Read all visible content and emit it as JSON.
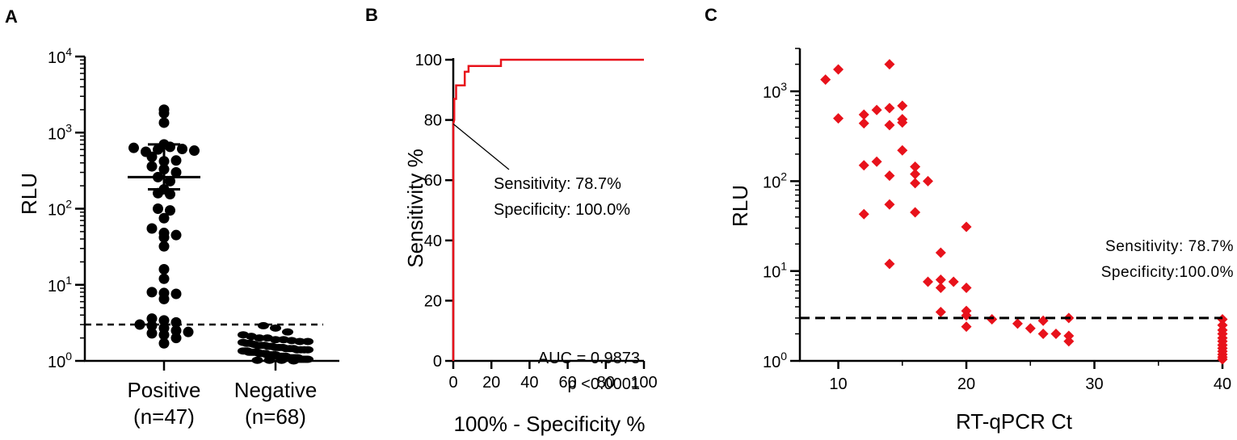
{
  "chart_data": [
    {
      "type": "scatter",
      "panel": "A",
      "ylabel": "RLU",
      "yscale": "log",
      "ylim": [
        1,
        10000
      ],
      "y_ticks": [
        {
          "value": 1,
          "base": "10",
          "exp": "0"
        },
        {
          "value": 10,
          "base": "10",
          "exp": "1"
        },
        {
          "value": 100,
          "base": "10",
          "exp": "2"
        },
        {
          "value": 1000,
          "base": "10",
          "exp": "3"
        },
        {
          "value": 10000,
          "base": "10",
          "exp": "4"
        }
      ],
      "cutoff": 3.0,
      "colors": {
        "points": "#000000",
        "line": "#000000"
      },
      "groups": [
        {
          "name": "Positive",
          "count_label": "(n=47)",
          "mean": 260,
          "sem_range": [
            180,
            700
          ],
          "values": [
            2000,
            1800,
            1350,
            700,
            630,
            560,
            600,
            650,
            610,
            580,
            480,
            420,
            430,
            360,
            330,
            300,
            260,
            230,
            180,
            160,
            155,
            100,
            95,
            75,
            55,
            48,
            45,
            42,
            32,
            16,
            12,
            8,
            7.8,
            7.6,
            6.5,
            3.6,
            3.4,
            3.2,
            3.0,
            2.9,
            2.7,
            2.5,
            2.4,
            2.3,
            2.2,
            2.0,
            1.7
          ]
        },
        {
          "name": "Negative",
          "count_label": "(n=68)",
          "values": [
            2.9,
            2.7,
            2.4,
            2.2,
            2.1,
            2.0,
            2.0,
            1.9,
            1.9,
            1.85,
            1.8,
            1.8,
            1.75,
            1.7,
            1.7,
            1.65,
            1.6,
            1.6,
            1.6,
            1.55,
            1.55,
            1.5,
            1.5,
            1.5,
            1.45,
            1.45,
            1.45,
            1.4,
            1.4,
            1.4,
            1.4,
            1.35,
            1.35,
            1.35,
            1.3,
            1.3,
            1.3,
            1.3,
            1.3,
            1.25,
            1.25,
            1.25,
            1.25,
            1.2,
            1.2,
            1.2,
            1.2,
            1.2,
            1.15,
            1.15,
            1.15,
            1.15,
            1.15,
            1.1,
            1.1,
            1.1,
            1.1,
            1.1,
            1.1,
            1.05,
            1.05,
            1.05,
            1.05,
            1.05,
            1.02,
            1.02,
            1.02,
            1.0
          ]
        }
      ]
    },
    {
      "type": "line",
      "panel": "B",
      "xlabel": "100% - Specificity %",
      "ylabel": "Sensitivity %",
      "xlim": [
        0,
        100
      ],
      "ylim": [
        0,
        100
      ],
      "x_ticks": [
        0,
        20,
        40,
        60,
        80,
        100
      ],
      "y_ticks": [
        0,
        20,
        40,
        60,
        80,
        100
      ],
      "colors": {
        "curve": "#e8121b",
        "axis": "#000000"
      },
      "roc_points": [
        [
          0,
          0
        ],
        [
          0,
          78.7
        ],
        [
          0.5,
          80
        ],
        [
          0.5,
          87
        ],
        [
          1.5,
          87
        ],
        [
          1.5,
          91.5
        ],
        [
          6,
          91.5
        ],
        [
          6,
          96
        ],
        [
          8,
          96
        ],
        [
          8,
          97.9
        ],
        [
          25,
          97.9
        ],
        [
          25,
          100
        ],
        [
          100,
          100
        ]
      ],
      "point_annotation": {
        "x": 0,
        "y": 78.7,
        "lines": [
          "Sensitivity: 78.7%",
          "Specificity: 100.0%"
        ]
      },
      "stats": [
        "AUC = 0.9873",
        "p <0.0001"
      ]
    },
    {
      "type": "scatter",
      "panel": "C",
      "xlabel": "RT-qPCR Ct",
      "ylabel": "RLU",
      "yscale": "log",
      "xlim": [
        7,
        40
      ],
      "ylim": [
        1,
        3000
      ],
      "x_ticks": [
        10,
        20,
        30,
        40
      ],
      "y_ticks": [
        {
          "value": 1,
          "base": "10",
          "exp": "0"
        },
        {
          "value": 10,
          "base": "10",
          "exp": "1"
        },
        {
          "value": 100,
          "base": "10",
          "exp": "2"
        },
        {
          "value": 1000,
          "base": "10",
          "exp": "3"
        }
      ],
      "cutoff": 3.0,
      "colors": {
        "points": "#e8121b",
        "line": "#000000"
      },
      "annotation": [
        "Sensitivity: 78.7%",
        "Specificity:100.0%"
      ],
      "points": [
        [
          9,
          1350
        ],
        [
          10,
          1750
        ],
        [
          10,
          500
        ],
        [
          12,
          550
        ],
        [
          12,
          440
        ],
        [
          12,
          150
        ],
        [
          12,
          43
        ],
        [
          13,
          620
        ],
        [
          13,
          165
        ],
        [
          14,
          2000
        ],
        [
          14,
          650
        ],
        [
          14,
          420
        ],
        [
          14,
          115
        ],
        [
          14,
          55
        ],
        [
          14,
          12
        ],
        [
          15,
          690
        ],
        [
          15,
          490
        ],
        [
          15,
          450
        ],
        [
          15,
          220
        ],
        [
          16,
          145
        ],
        [
          16,
          120
        ],
        [
          16,
          95
        ],
        [
          16,
          45
        ],
        [
          17,
          100
        ],
        [
          17,
          7.6
        ],
        [
          18,
          16
        ],
        [
          18,
          8
        ],
        [
          18,
          6.5
        ],
        [
          18,
          3.5
        ],
        [
          19,
          7.6
        ],
        [
          20,
          31
        ],
        [
          20,
          6.5
        ],
        [
          20,
          3.6
        ],
        [
          20,
          3.2
        ],
        [
          20,
          2.4
        ],
        [
          22,
          2.9
        ],
        [
          24,
          2.6
        ],
        [
          25,
          2.3
        ],
        [
          26,
          2.8
        ],
        [
          26,
          2.0
        ],
        [
          27,
          2.0
        ],
        [
          28,
          3.0
        ],
        [
          28,
          1.9
        ],
        [
          28,
          1.65
        ],
        [
          40,
          2.9
        ],
        [
          40,
          2.5
        ],
        [
          40,
          2.2
        ],
        [
          40,
          2.0
        ],
        [
          40,
          1.8
        ],
        [
          40,
          1.65
        ],
        [
          40,
          1.5
        ],
        [
          40,
          1.38
        ],
        [
          40,
          1.28
        ],
        [
          40,
          1.18
        ],
        [
          40,
          1.1
        ],
        [
          40,
          1.04
        ]
      ]
    }
  ],
  "panels": {
    "a": {
      "letter": "A"
    },
    "b": {
      "letter": "B"
    },
    "c": {
      "letter": "C"
    }
  }
}
